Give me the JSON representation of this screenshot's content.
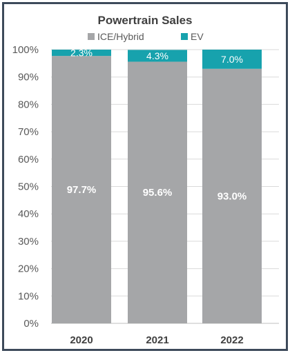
{
  "chart_data": {
    "type": "bar",
    "stacked": true,
    "title": "Powertrain Sales",
    "categories": [
      "2020",
      "2021",
      "2022"
    ],
    "series": [
      {
        "name": "ICE/Hybrid",
        "values": [
          97.7,
          95.6,
          93.0
        ],
        "labels": [
          "97.7%",
          "95.6%",
          "93.0%"
        ],
        "color": "#a5a6a8"
      },
      {
        "name": "EV",
        "values": [
          2.3,
          4.3,
          7.0
        ],
        "labels": [
          "2.3%",
          "4.3%",
          "7.0%"
        ],
        "color": "#17a2ad"
      }
    ],
    "ylim": [
      0,
      100
    ],
    "yticks": [
      "0%",
      "10%",
      "20%",
      "30%",
      "40%",
      "50%",
      "60%",
      "70%",
      "80%",
      "90%",
      "100%"
    ],
    "xlabel": "",
    "ylabel": "",
    "grid": true,
    "legend": "top-center",
    "gridColor": "#d9d9d9"
  }
}
